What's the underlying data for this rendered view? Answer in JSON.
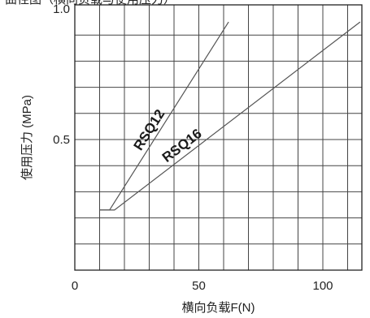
{
  "header": {
    "cropped_text": "曲径图（横向负载与使用压力）"
  },
  "chart_data": {
    "type": "line",
    "title": "",
    "xlabel": "横向负载F(N)",
    "ylabel": "使用压力 (MPa)",
    "xlim": [
      0,
      120
    ],
    "ylim": [
      0,
      1.0
    ],
    "x_ticks": [
      0,
      50,
      100
    ],
    "y_ticks": [
      0.5,
      1.0
    ],
    "x_tick_labels": [
      "0",
      "50",
      "100"
    ],
    "y_tick_labels": [
      "0.5",
      "1.0"
    ],
    "grid": true,
    "grid_x_step": 10,
    "grid_y_step": 0.1,
    "series": [
      {
        "name": "RSQ12",
        "x": [
          10,
          14,
          62
        ],
        "y": [
          0.23,
          0.23,
          0.95
        ]
      },
      {
        "name": "RSQ16",
        "x": [
          10,
          16,
          115
        ],
        "y": [
          0.23,
          0.23,
          0.95
        ]
      }
    ],
    "annotations": [
      {
        "text": "RSQ12",
        "series": "RSQ12"
      },
      {
        "text": "RSQ16",
        "series": "RSQ16"
      }
    ]
  }
}
